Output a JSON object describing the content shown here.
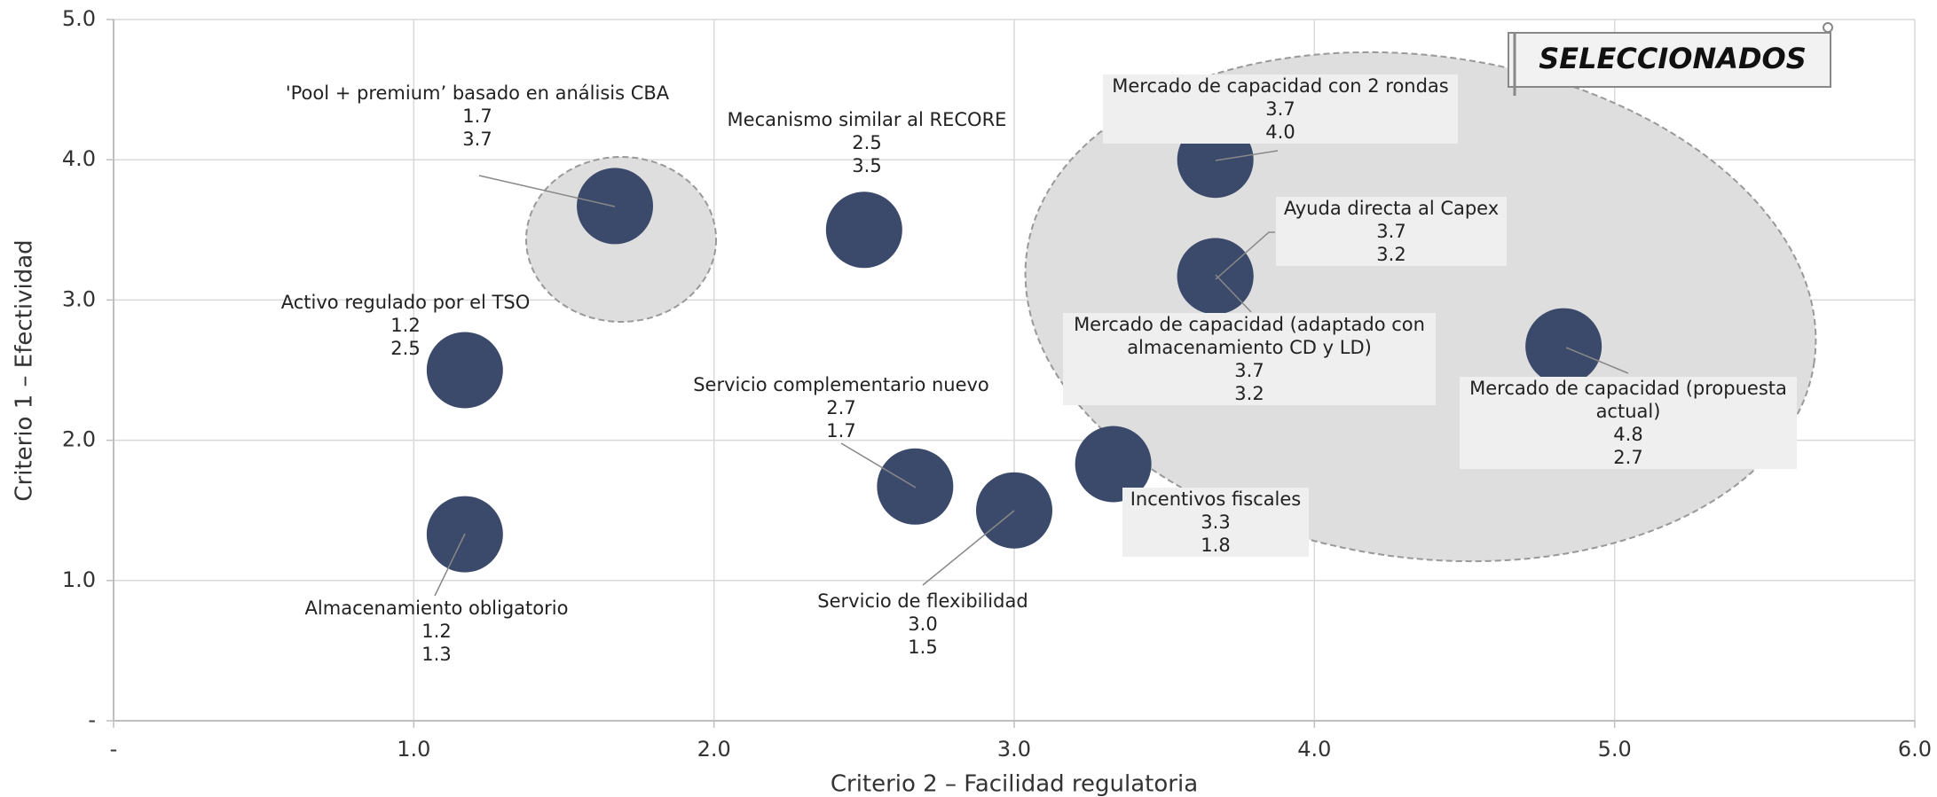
{
  "chart_data": {
    "type": "scatter",
    "x_label": "Criterio 2 – Facilidad regulatoria",
    "y_label": "Criterio 1 – Efectividad",
    "annotation": "SELECCIONADOS",
    "color": "#3b4a6b",
    "grid": true,
    "xlim": [
      0,
      6
    ],
    "ylim": [
      0,
      5
    ],
    "xticks": [
      {
        "value": 0,
        "label": "-"
      },
      {
        "value": 1,
        "label": "1.0"
      },
      {
        "value": 2,
        "label": "2.0"
      },
      {
        "value": 3,
        "label": "3.0"
      },
      {
        "value": 4,
        "label": "4.0"
      },
      {
        "value": 5,
        "label": "5.0"
      },
      {
        "value": 6,
        "label": "6.0"
      }
    ],
    "yticks": [
      {
        "value": 0,
        "label": "-"
      },
      {
        "value": 1,
        "label": "1.0"
      },
      {
        "value": 2,
        "label": "2.0"
      },
      {
        "value": 3,
        "label": "3.0"
      },
      {
        "value": 4,
        "label": "4.0"
      },
      {
        "value": 5,
        "label": "5.0"
      }
    ],
    "labels": [
      "'Pool + premium’ basado en análisis CBA",
      "Mecanismo similar al RECORE",
      "Activo regulado por el TSO",
      "Almacenamiento obligatorio",
      "Servicio complementario nuevo",
      "Servicio de flexibilidad",
      "Incentivos fiscales",
      "Mercado de capacidad con 2 rondas",
      "Ayuda directa al Capex",
      "Mercado de capacidad (adaptado con almacenamiento CD y LD)",
      "Mercado de capacidad (propuesta actual)"
    ],
    "x": [
      1.67,
      2.5,
      1.17,
      1.17,
      2.67,
      3.0,
      3.33,
      3.67,
      3.67,
      3.67,
      4.83
    ],
    "x_value_labels": [
      "1.7",
      "2.5",
      "1.2",
      "1.2",
      "2.7",
      "3.0",
      "3.3",
      "3.7",
      "3.7",
      "3.7",
      "4.8"
    ],
    "values": [
      3.67,
      3.5,
      2.5,
      1.33,
      1.67,
      1.5,
      1.83,
      4.0,
      3.17,
      3.17,
      2.67
    ],
    "value_labels": [
      "3.7",
      "3.5",
      "2.5",
      "1.3",
      "1.7",
      "1.5",
      "1.8",
      "4.0",
      "3.2",
      "3.2",
      "2.7"
    ]
  }
}
